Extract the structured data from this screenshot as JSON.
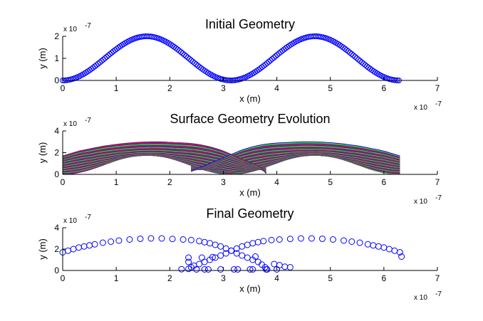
{
  "chart_data": [
    {
      "type": "scatter",
      "title": "Initial Geometry",
      "xlabel": "x (m)",
      "ylabel": "y (m)",
      "x_multiplier": "x 10",
      "x_exponent": "-7",
      "y_multiplier": "x 10",
      "y_exponent": "-7",
      "xlim": [
        0,
        7
      ],
      "ylim": [
        0,
        2
      ],
      "xticks": [
        "0",
        "1",
        "2",
        "3",
        "4",
        "5",
        "6",
        "7"
      ],
      "yticks": [
        "0",
        "1",
        "2"
      ],
      "marker": "circle",
      "color": "#0000ff",
      "curve": "y = 1 - cos(2x)",
      "x_range": [
        0,
        6.28
      ],
      "n_points": 200,
      "grid": false
    },
    {
      "type": "line",
      "title": "Surface Geometry Evolution",
      "xlabel": "x (m)",
      "ylabel": "y (m)",
      "x_multiplier": "x 10",
      "x_exponent": "-7",
      "y_multiplier": "x 10",
      "y_exponent": "-7",
      "xlim": [
        0,
        7
      ],
      "ylim": [
        0,
        4
      ],
      "xticks": [
        "0",
        "1",
        "2",
        "3",
        "4",
        "5",
        "6",
        "7"
      ],
      "yticks": [
        "0",
        "2",
        "4"
      ],
      "colors": [
        "#0000ff",
        "#008000",
        "#ff0000",
        "#00bfbf",
        "#bf00bf",
        "#bfbf00",
        "#404040"
      ],
      "grid": false
    },
    {
      "type": "scatter",
      "title": "Final Geometry",
      "xlabel": "x (m)",
      "ylabel": "y (m)",
      "x_multiplier": "x 10",
      "x_exponent": "-7",
      "y_multiplier": "x 10",
      "y_exponent": "-7",
      "xlim": [
        0,
        7
      ],
      "ylim": [
        0,
        4
      ],
      "xticks": [
        "0",
        "1",
        "2",
        "3",
        "4",
        "5",
        "6",
        "7"
      ],
      "yticks": [
        "0",
        "2",
        "4"
      ],
      "marker": "circle",
      "color": "#0000ff",
      "grid": false,
      "points": [
        [
          0,
          1.7
        ],
        [
          0.1,
          1.85
        ],
        [
          0.2,
          2.0
        ],
        [
          0.3,
          2.15
        ],
        [
          0.4,
          2.25
        ],
        [
          0.5,
          2.35
        ],
        [
          0.6,
          2.45
        ],
        [
          0.75,
          2.6
        ],
        [
          0.9,
          2.7
        ],
        [
          1.05,
          2.8
        ],
        [
          1.25,
          2.9
        ],
        [
          1.45,
          2.97
        ],
        [
          1.65,
          3.0
        ],
        [
          1.85,
          3.0
        ],
        [
          2.05,
          2.95
        ],
        [
          2.25,
          2.9
        ],
        [
          2.4,
          2.85
        ],
        [
          2.55,
          2.75
        ],
        [
          2.65,
          2.65
        ],
        [
          2.75,
          2.55
        ],
        [
          2.85,
          2.4
        ],
        [
          2.95,
          2.25
        ],
        [
          3.05,
          2.05
        ],
        [
          3.15,
          1.85
        ],
        [
          3.25,
          1.6
        ],
        [
          3.35,
          1.4
        ],
        [
          3.45,
          1.2
        ],
        [
          3.55,
          1.0
        ],
        [
          3.65,
          0.8
        ],
        [
          3.72,
          0.55
        ],
        [
          3.78,
          0.3
        ],
        [
          3.8,
          0.1
        ],
        [
          6.3,
          1.7
        ],
        [
          6.2,
          1.85
        ],
        [
          6.1,
          2.0
        ],
        [
          6.0,
          2.15
        ],
        [
          5.9,
          2.25
        ],
        [
          5.8,
          2.35
        ],
        [
          5.7,
          2.45
        ],
        [
          5.55,
          2.6
        ],
        [
          5.4,
          2.7
        ],
        [
          5.25,
          2.8
        ],
        [
          5.05,
          2.9
        ],
        [
          4.85,
          2.97
        ],
        [
          4.65,
          3.0
        ],
        [
          4.45,
          3.0
        ],
        [
          4.25,
          2.95
        ],
        [
          4.05,
          2.9
        ],
        [
          3.9,
          2.85
        ],
        [
          3.75,
          2.75
        ],
        [
          3.65,
          2.65
        ],
        [
          3.55,
          2.55
        ],
        [
          3.45,
          2.4
        ],
        [
          3.35,
          2.25
        ],
        [
          3.25,
          2.05
        ],
        [
          3.15,
          1.85
        ],
        [
          3.05,
          1.6
        ],
        [
          2.95,
          1.4
        ],
        [
          2.85,
          1.2
        ],
        [
          2.75,
          1.0
        ],
        [
          2.65,
          0.8
        ],
        [
          2.55,
          0.6
        ],
        [
          2.45,
          0.45
        ],
        [
          2.4,
          0.3
        ],
        [
          2.35,
          0.15
        ],
        [
          6.33,
          1.3
        ],
        [
          2.22,
          0.12
        ],
        [
          2.35,
          1.2
        ],
        [
          2.35,
          0.8
        ],
        [
          2.5,
          0.1
        ],
        [
          2.65,
          0.1
        ],
        [
          2.72,
          0.1
        ],
        [
          2.95,
          0.1
        ],
        [
          3.2,
          0.1
        ],
        [
          3.27,
          0.1
        ],
        [
          3.5,
          0.1
        ],
        [
          3.55,
          0.1
        ],
        [
          3.82,
          0.1
        ],
        [
          3.95,
          0.6
        ],
        [
          4.05,
          0.5
        ],
        [
          4.15,
          0.35
        ],
        [
          4.25,
          0.3
        ],
        [
          4.0,
          0.1
        ],
        [
          2.6,
          1.2
        ],
        [
          2.8,
          1.25
        ],
        [
          3.6,
          1.3
        ]
      ]
    }
  ]
}
